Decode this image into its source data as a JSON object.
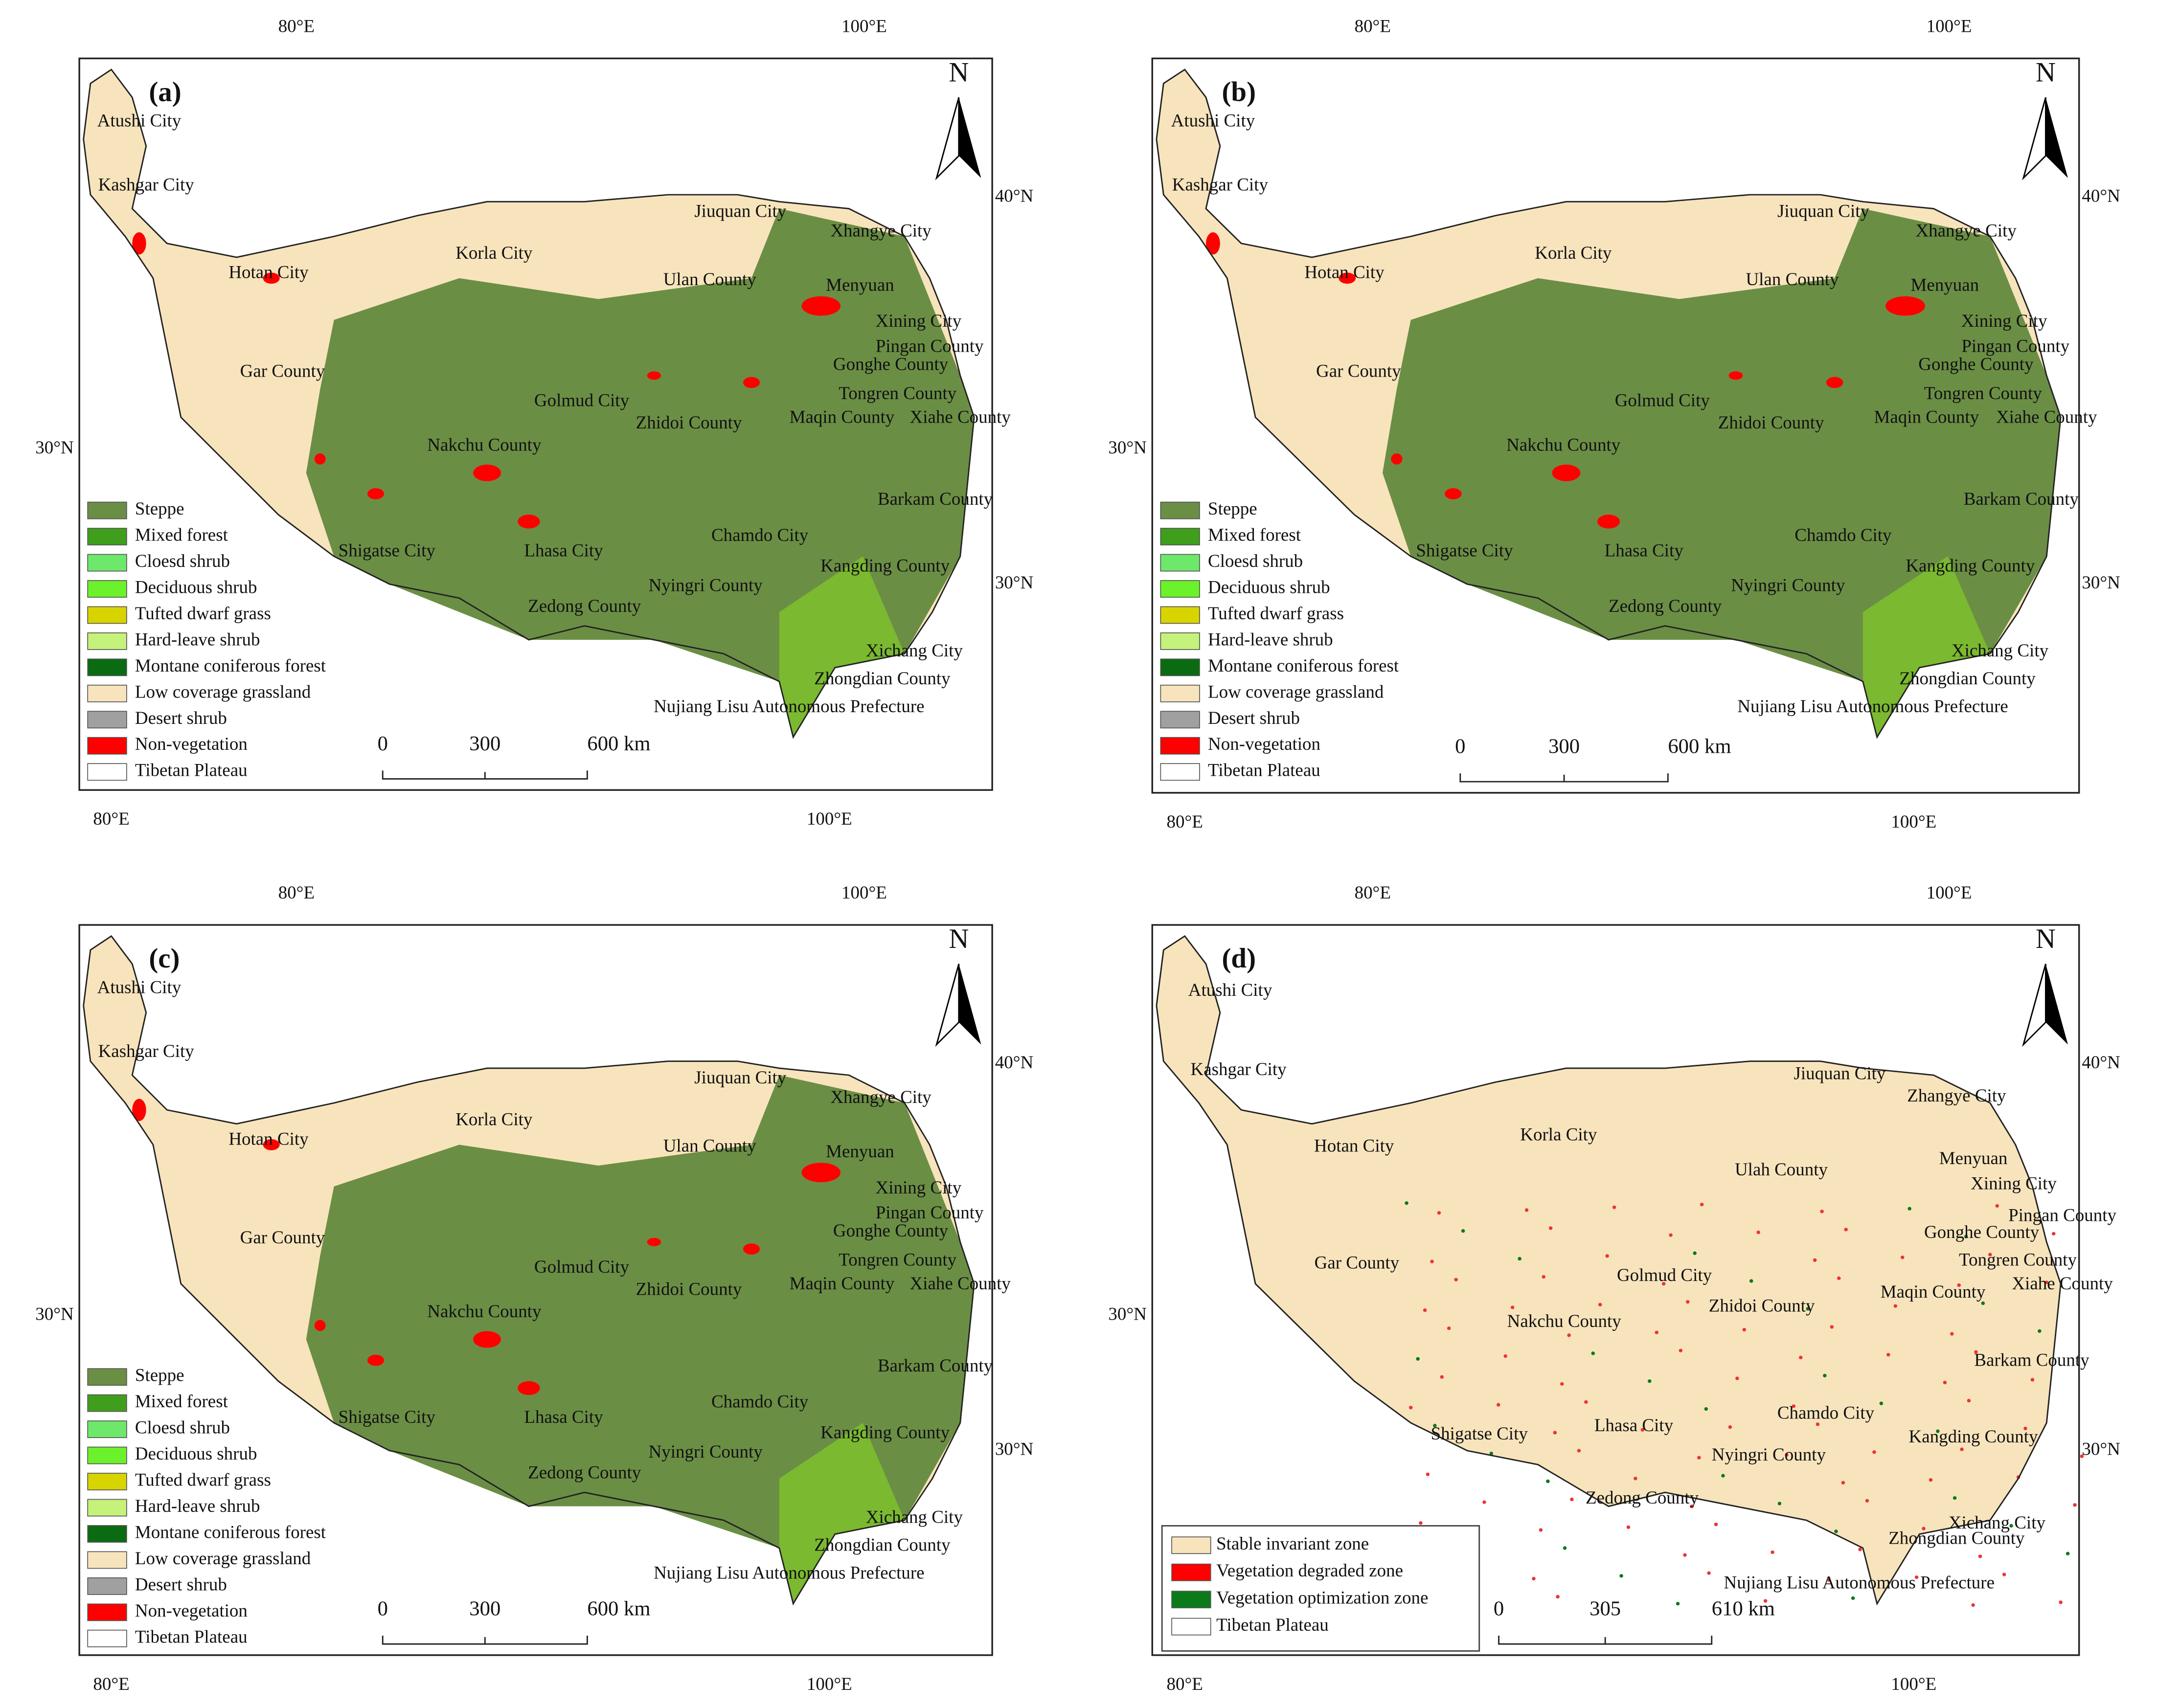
{
  "panels": [
    {
      "label": "(a)",
      "north": "N",
      "lon_top": [
        "80°E",
        "100°E"
      ],
      "lon_bottom": [
        "80°E",
        "100°E"
      ],
      "lat_left": [
        "30°N"
      ],
      "lat_right": [
        "40°N",
        "30°N"
      ],
      "places": [
        "Atushi City",
        "Kashgar City",
        "Hotan City",
        "Korla City",
        "Jiuquan City",
        "Xhangye City",
        "Ulan County",
        "Menyuan",
        "Xining City",
        "Pingan County",
        "Gar County",
        "Gonghe County",
        "Tongren County",
        "Golmud City",
        "Zhidoi County",
        "Maqin County",
        "Xiahe County",
        "Nakchu County",
        "Barkam County",
        "Chamdo City",
        "Shigatse City",
        "Lhasa City",
        "Nyingri County",
        "Kangding County",
        "Zedong County",
        "Xichang City",
        "Zhongdian County",
        "Nujiang Lisu Autonomous Prefecture"
      ],
      "legend": [
        {
          "name": "Steppe",
          "color": "#6b8e45"
        },
        {
          "name": "Mixed forest",
          "color": "#3f9e1c"
        },
        {
          "name": "Cloesd shrub",
          "color": "#6ee86a"
        },
        {
          "name": "Deciduous shrub",
          "color": "#6cf22a"
        },
        {
          "name": "Tufted dwarf grass",
          "color": "#d8d400"
        },
        {
          "name": "Hard-leave shrub",
          "color": "#c4f27a"
        },
        {
          "name": "Montane coniferous forest",
          "color": "#0b6b12"
        },
        {
          "name": "Low coverage grassland",
          "color": "#f8e4bc"
        },
        {
          "name": "Desert shrub",
          "color": "#a0a0a0"
        },
        {
          "name": "Non-vegetation",
          "color": "#ff0000"
        },
        {
          "name": "Tibetan Plateau",
          "color": "#ffffff"
        }
      ],
      "scale": [
        "0",
        "300",
        "600 km"
      ]
    },
    {
      "label": "(b)",
      "north": "N",
      "lon_top": [
        "80°E",
        "100°E"
      ],
      "lon_bottom": [
        "80°E",
        "100°E"
      ],
      "lat_left": [
        "30°N"
      ],
      "lat_right": [
        "40°N",
        "30°N"
      ],
      "places": [
        "Atushi City",
        "Kashgar City",
        "Hotan City",
        "Korla City",
        "Jiuquan City",
        "Xhangye City",
        "Ulan County",
        "Menyuan",
        "Xining City",
        "Pingan County",
        "Gar County",
        "Gonghe County",
        "Tongren County",
        "Golmud City",
        "Zhidoi County",
        "Maqin County",
        "Xiahe County",
        "Nakchu County",
        "Barkam County",
        "Chamdo City",
        "Shigatse City",
        "Lhasa City",
        "Nyingri County",
        "Kangding County",
        "Zedong County",
        "Xichang City",
        "Zhongdian County",
        "Nujiang Lisu Autonomous Prefecture"
      ],
      "legend": [
        {
          "name": "Steppe",
          "color": "#6b8e45"
        },
        {
          "name": "Mixed forest",
          "color": "#3f9e1c"
        },
        {
          "name": "Cloesd shrub",
          "color": "#6ee86a"
        },
        {
          "name": "Deciduous shrub",
          "color": "#6cf22a"
        },
        {
          "name": "Tufted dwarf grass",
          "color": "#d8d400"
        },
        {
          "name": "Hard-leave shrub",
          "color": "#c4f27a"
        },
        {
          "name": "Montane coniferous forest",
          "color": "#0b6b12"
        },
        {
          "name": "Low coverage grassland",
          "color": "#f8e4bc"
        },
        {
          "name": "Desert shrub",
          "color": "#a0a0a0"
        },
        {
          "name": "Non-vegetation",
          "color": "#ff0000"
        },
        {
          "name": "Tibetan Plateau",
          "color": "#ffffff"
        }
      ],
      "scale": [
        "0",
        "300",
        "600 km"
      ]
    },
    {
      "label": "(c)",
      "north": "N",
      "lon_top": [
        "80°E",
        "100°E"
      ],
      "lon_bottom": [
        "80°E",
        "100°E"
      ],
      "lat_left": [
        "30°N"
      ],
      "lat_right": [
        "40°N",
        "30°N"
      ],
      "places": [
        "Atushi City",
        "Kashgar City",
        "Hotan City",
        "Korla City",
        "Jiuquan City",
        "Xhangye City",
        "Ulan County",
        "Menyuan",
        "Xining City",
        "Pingan County",
        "Gar County",
        "Gonghe County",
        "Tongren County",
        "Golmud City",
        "Zhidoi County",
        "Maqin County",
        "Xiahe County",
        "Nakchu County",
        "Barkam County",
        "Chamdo City",
        "Shigatse City",
        "Lhasa City",
        "Nyingri County",
        "Kangding County",
        "Zedong County",
        "Xichang City",
        "Zhongdian County",
        "Nujiang Lisu Autonomous Prefecture"
      ],
      "legend": [
        {
          "name": "Steppe",
          "color": "#6b8e45"
        },
        {
          "name": "Mixed forest",
          "color": "#3f9e1c"
        },
        {
          "name": "Cloesd shrub",
          "color": "#6ee86a"
        },
        {
          "name": "Deciduous shrub",
          "color": "#6cf22a"
        },
        {
          "name": "Tufted dwarf grass",
          "color": "#d8d400"
        },
        {
          "name": "Hard-leave shrub",
          "color": "#c4f27a"
        },
        {
          "name": "Montane coniferous forest",
          "color": "#0b6b12"
        },
        {
          "name": "Low coverage grassland",
          "color": "#f8e4bc"
        },
        {
          "name": "Desert shrub",
          "color": "#a0a0a0"
        },
        {
          "name": "Non-vegetation",
          "color": "#ff0000"
        },
        {
          "name": "Tibetan Plateau",
          "color": "#ffffff"
        }
      ],
      "scale": [
        "0",
        "300",
        "600 km"
      ]
    },
    {
      "label": "(d)",
      "north": "N",
      "lon_top": [
        "80°E",
        "100°E"
      ],
      "lon_bottom": [
        "80°E",
        "100°E"
      ],
      "lat_left": [
        "30°N"
      ],
      "lat_right": [
        "40°N",
        "30°N"
      ],
      "places": [
        "Atushi City",
        "Kashgar City",
        "Hotan City",
        "Korla City",
        "Jiuquan City",
        "Zhangye City",
        "Ulah County",
        "Menyuan",
        "Xining City",
        "Pingan County",
        "Gar County",
        "Gonghe County",
        "Tongren County",
        "Golmud City",
        "Zhidoi County",
        "Maqin County",
        "Xiahe County",
        "Nakchu County",
        "Barkam County",
        "Chamdo City",
        "Shigatse City",
        "Lhasa City",
        "Nyingri County",
        "Kangding County",
        "Zedong County",
        "Xichang City",
        "Zhongdian County",
        "Nujiang Lisu Autonomous Prefecture"
      ],
      "legend": [
        {
          "name": "Stable invariant zone",
          "color": "#f8e4bc"
        },
        {
          "name": "Vegetation degraded zone",
          "color": "#ff0000"
        },
        {
          "name": "Vegetation optimization zone",
          "color": "#0b7a1a"
        },
        {
          "name": "Tibetan Plateau",
          "color": "#ffffff"
        }
      ],
      "scale": [
        "0",
        "305",
        "610 km"
      ]
    }
  ]
}
